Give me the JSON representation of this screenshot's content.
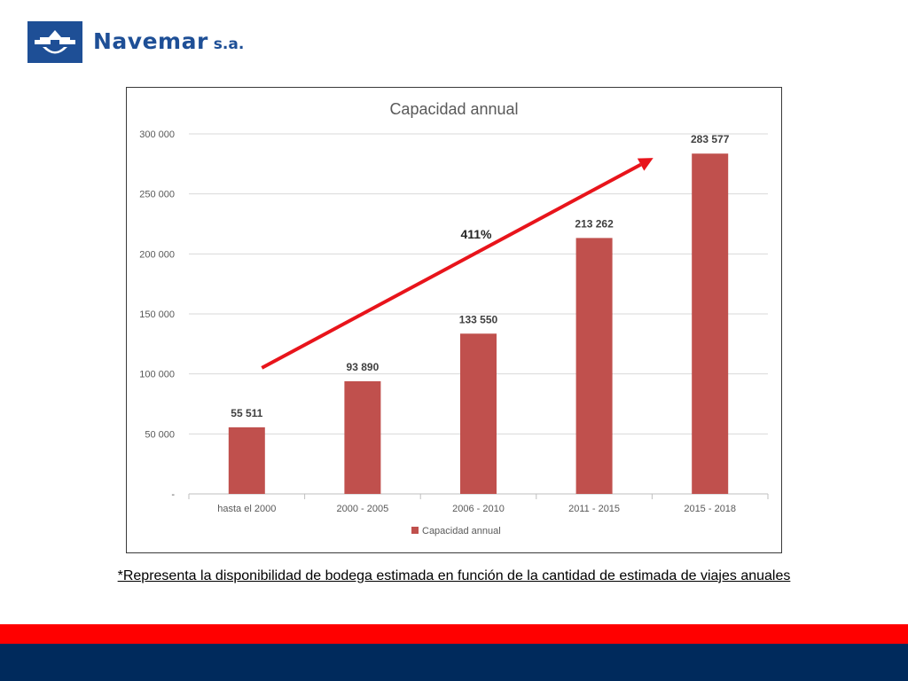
{
  "brand": {
    "name": "Navemar",
    "suffix": "s.a.",
    "color": "#1e4f96",
    "icon": "navemar-logo-icon"
  },
  "footnote": "*Representa la disponibilidad de bodega estimada en función de la cantidad de estimada de viajes anuales",
  "colors": {
    "bar": "#c0504d",
    "arrow": "#e8141b",
    "band_red": "#ff0000",
    "band_blue": "#002a5c"
  },
  "chart_data": {
    "type": "bar",
    "title": "Capacidad annual",
    "categories": [
      "hasta el 2000",
      "2000 - 2005",
      "2006 - 2010",
      "2011 - 2015",
      "2015 - 2018"
    ],
    "series": [
      {
        "name": "Capacidad annual",
        "values": [
          55511,
          93890,
          133550,
          213262,
          283577
        ]
      }
    ],
    "data_labels": [
      "55 511",
      "93 890",
      "133 550",
      "213 262",
      "283 577"
    ],
    "y_ticks": [
      0,
      50000,
      100000,
      150000,
      200000,
      250000,
      300000
    ],
    "y_tick_labels": [
      "-",
      "50 000",
      "100 000",
      "150 000",
      "200 000",
      "250 000",
      "300 000"
    ],
    "ylim": [
      0,
      300000
    ],
    "grid": true,
    "legend_position": "bottom",
    "annotation": {
      "text": "411%",
      "arrow_from": {
        "category": "hasta el 2000",
        "value": 105000
      },
      "arrow_to": {
        "category": "2015 - 2018",
        "value": 280000
      }
    }
  }
}
